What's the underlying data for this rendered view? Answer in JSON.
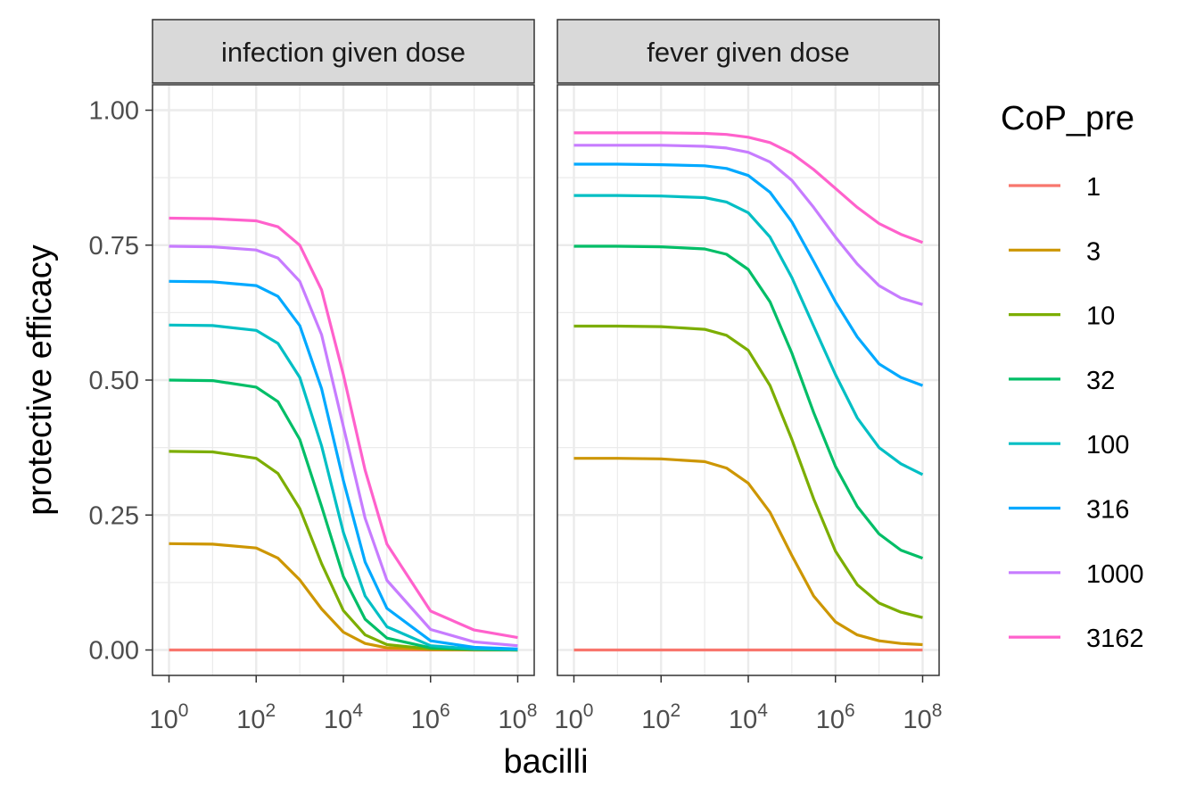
{
  "chart_data": {
    "type": "line",
    "xlabel": "bacilli",
    "ylabel": "protective efficacy",
    "x_scale": "log10",
    "x_range_log10": [
      0,
      8
    ],
    "xticks": [
      {
        "base": "10",
        "exp": "0",
        "log10": 0
      },
      {
        "base": "10",
        "exp": "2",
        "log10": 2
      },
      {
        "base": "10",
        "exp": "4",
        "log10": 4
      },
      {
        "base": "10",
        "exp": "6",
        "log10": 6
      },
      {
        "base": "10",
        "exp": "8",
        "log10": 8
      }
    ],
    "ylim": [
      -0.05,
      1.05
    ],
    "yticks": [
      {
        "label": "0.00",
        "value": 0
      },
      {
        "label": "0.25",
        "value": 0.25
      },
      {
        "label": "0.50",
        "value": 0.5
      },
      {
        "label": "0.75",
        "value": 0.75
      },
      {
        "label": "1.00",
        "value": 1
      }
    ],
    "legend": {
      "title": "CoP_pre",
      "placement": "right",
      "entries": [
        {
          "label": "1",
          "color": "#F8766D"
        },
        {
          "label": "3",
          "color": "#CD9600"
        },
        {
          "label": "10",
          "color": "#7CAE00"
        },
        {
          "label": "32",
          "color": "#00BE67"
        },
        {
          "label": "100",
          "color": "#00BFC4"
        },
        {
          "label": "316",
          "color": "#00A9FF"
        },
        {
          "label": "1000",
          "color": "#C77CFF"
        },
        {
          "label": "3162",
          "color": "#FF61CC"
        }
      ]
    },
    "facets": [
      {
        "title": "infection given dose",
        "series": [
          {
            "name": "1",
            "x_log10": [
              0,
              8
            ],
            "y": [
              0,
              0
            ]
          },
          {
            "name": "3",
            "x_log10": [
              0,
              1,
              2,
              2.5,
              3,
              3.5,
              4,
              4.5,
              5,
              6,
              7,
              8
            ],
            "y": [
              0.197,
              0.196,
              0.189,
              0.17,
              0.13,
              0.076,
              0.033,
              0.012,
              0.004,
              0.001,
              0.0,
              0.0
            ]
          },
          {
            "name": "10",
            "x_log10": [
              0,
              1,
              2,
              2.5,
              3,
              3.5,
              4,
              4.5,
              5,
              6,
              7,
              8
            ],
            "y": [
              0.368,
              0.367,
              0.355,
              0.327,
              0.262,
              0.16,
              0.073,
              0.028,
              0.01,
              0.002,
              0.001,
              0.0
            ]
          },
          {
            "name": "32",
            "x_log10": [
              0,
              1,
              2,
              2.5,
              3,
              3.5,
              4,
              4.5,
              5,
              6,
              7,
              8
            ],
            "y": [
              0.5,
              0.499,
              0.487,
              0.46,
              0.39,
              0.266,
              0.136,
              0.057,
              0.022,
              0.004,
              0.001,
              0.0
            ]
          },
          {
            "name": "100",
            "x_log10": [
              0,
              1,
              2,
              2.5,
              3,
              3.5,
              4,
              4.5,
              5,
              6,
              7,
              8
            ],
            "y": [
              0.602,
              0.601,
              0.592,
              0.568,
              0.505,
              0.378,
              0.218,
              0.1,
              0.043,
              0.008,
              0.002,
              0.001
            ]
          },
          {
            "name": "316",
            "x_log10": [
              0,
              1,
              2,
              2.5,
              3,
              3.5,
              4,
              4.5,
              5,
              6,
              7,
              8
            ],
            "y": [
              0.683,
              0.682,
              0.675,
              0.655,
              0.601,
              0.484,
              0.314,
              0.163,
              0.077,
              0.017,
              0.005,
              0.002
            ]
          },
          {
            "name": "1000",
            "x_log10": [
              0,
              1,
              2,
              2.5,
              3,
              3.5,
              4,
              4.5,
              5,
              6,
              7,
              8
            ],
            "y": [
              0.748,
              0.747,
              0.741,
              0.726,
              0.683,
              0.584,
              0.414,
              0.244,
              0.129,
              0.038,
              0.015,
              0.008
            ]
          },
          {
            "name": "3162",
            "x_log10": [
              0,
              1,
              2,
              2.5,
              3,
              3.5,
              4,
              4.5,
              5,
              6,
              7,
              8
            ],
            "y": [
              0.8,
              0.799,
              0.795,
              0.784,
              0.75,
              0.667,
              0.51,
              0.333,
              0.196,
              0.072,
              0.037,
              0.023
            ]
          }
        ]
      },
      {
        "title": "fever given dose",
        "series": [
          {
            "name": "1",
            "x_log10": [
              0,
              8
            ],
            "y": [
              0,
              0
            ]
          },
          {
            "name": "3",
            "x_log10": [
              0,
              1,
              2,
              3,
              3.5,
              4,
              4.5,
              5,
              5.5,
              6,
              6.5,
              7,
              7.5,
              8
            ],
            "y": [
              0.355,
              0.355,
              0.354,
              0.349,
              0.337,
              0.309,
              0.255,
              0.175,
              0.1,
              0.052,
              0.028,
              0.017,
              0.012,
              0.01
            ]
          },
          {
            "name": "10",
            "x_log10": [
              0,
              1,
              2,
              3,
              3.5,
              4,
              4.5,
              5,
              5.5,
              6,
              6.5,
              7,
              7.5,
              8
            ],
            "y": [
              0.6,
              0.6,
              0.599,
              0.594,
              0.583,
              0.555,
              0.49,
              0.39,
              0.28,
              0.183,
              0.121,
              0.087,
              0.07,
              0.06
            ]
          },
          {
            "name": "32",
            "x_log10": [
              0,
              1,
              2,
              3,
              3.5,
              4,
              4.5,
              5,
              5.5,
              6,
              6.5,
              7,
              7.5,
              8
            ],
            "y": [
              0.748,
              0.748,
              0.747,
              0.743,
              0.733,
              0.705,
              0.645,
              0.55,
              0.44,
              0.34,
              0.266,
              0.215,
              0.185,
              0.17
            ]
          },
          {
            "name": "100",
            "x_log10": [
              0,
              1,
              2,
              3,
              3.5,
              4,
              4.5,
              5,
              5.5,
              6,
              6.5,
              7,
              7.5,
              8
            ],
            "y": [
              0.842,
              0.842,
              0.841,
              0.838,
              0.83,
              0.81,
              0.765,
              0.69,
              0.6,
              0.51,
              0.43,
              0.375,
              0.345,
              0.325
            ]
          },
          {
            "name": "316",
            "x_log10": [
              0,
              1,
              2,
              3,
              3.5,
              4,
              4.5,
              5,
              5.5,
              6,
              6.5,
              7,
              7.5,
              8
            ],
            "y": [
              0.9,
              0.9,
              0.899,
              0.897,
              0.892,
              0.879,
              0.848,
              0.793,
              0.72,
              0.645,
              0.58,
              0.53,
              0.505,
              0.49
            ]
          },
          {
            "name": "1000",
            "x_log10": [
              0,
              1,
              2,
              3,
              3.5,
              4,
              4.5,
              5,
              5.5,
              6,
              6.5,
              7,
              7.5,
              8
            ],
            "y": [
              0.935,
              0.935,
              0.935,
              0.933,
              0.93,
              0.922,
              0.904,
              0.87,
              0.82,
              0.765,
              0.715,
              0.675,
              0.652,
              0.64
            ]
          },
          {
            "name": "3162",
            "x_log10": [
              0,
              1,
              2,
              3,
              3.5,
              4,
              4.5,
              5,
              5.5,
              6,
              6.5,
              7,
              7.5,
              8
            ],
            "y": [
              0.958,
              0.958,
              0.958,
              0.957,
              0.955,
              0.95,
              0.94,
              0.92,
              0.89,
              0.855,
              0.82,
              0.79,
              0.77,
              0.755
            ]
          }
        ]
      }
    ]
  }
}
